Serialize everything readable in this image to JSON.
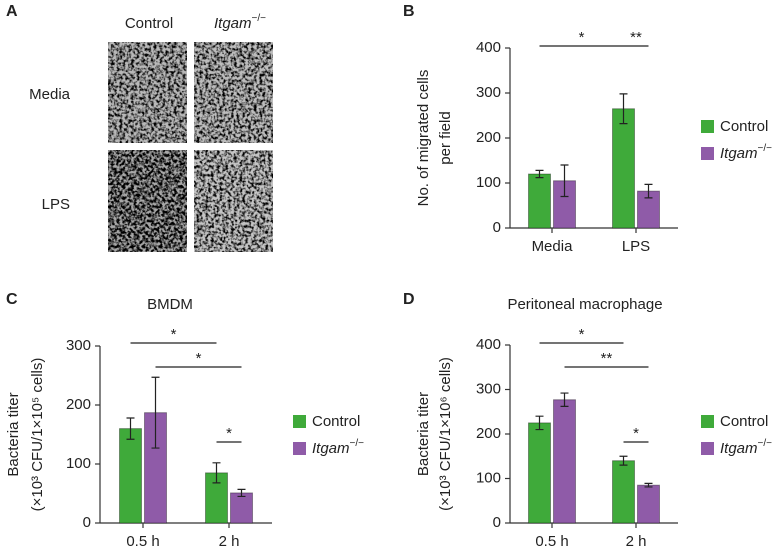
{
  "panel_a": {
    "panel": "A",
    "columns": [
      "Control",
      "Itgam−/−"
    ],
    "rows": [
      "Media",
      "LPS"
    ]
  },
  "chart_data": [
    {
      "type": "bar",
      "panel": "B",
      "ylabel": [
        "No. of migrated cells",
        "per field"
      ],
      "categories": [
        "Media",
        "LPS"
      ],
      "series": [
        {
          "name": "Control",
          "color": "#3faa3a",
          "values": [
            120,
            265
          ],
          "errors": [
            8,
            33
          ]
        },
        {
          "name": "Itgam−/−",
          "color": "#8f5ba8",
          "values": [
            105,
            82
          ],
          "errors": [
            35,
            15
          ]
        }
      ],
      "ylim": [
        0,
        400
      ],
      "yticks": [
        0,
        100,
        200,
        300,
        400
      ],
      "annotations": [
        {
          "text": "*"
        },
        {
          "text": "**"
        }
      ]
    },
    {
      "type": "bar",
      "panel": "C",
      "title": "BMDM",
      "ylabel": [
        "Bacteria titer",
        "(×10³ CFU/1×10⁵ cells)"
      ],
      "categories": [
        "0.5 h",
        "2 h"
      ],
      "series": [
        {
          "name": "Control",
          "color": "#3faa3a",
          "values": [
            160,
            85
          ],
          "errors": [
            18,
            17
          ]
        },
        {
          "name": "Itgam−/−",
          "color": "#8f5ba8",
          "values": [
            187,
            51
          ],
          "errors": [
            60,
            6
          ]
        }
      ],
      "ylim": [
        0,
        300
      ],
      "yticks": [
        0,
        100,
        200,
        300
      ],
      "annotations": [
        {
          "text": "*"
        },
        {
          "text": "*"
        },
        {
          "text": "*"
        }
      ]
    },
    {
      "type": "bar",
      "panel": "D",
      "title": "Peritoneal macrophage",
      "ylabel": [
        "Bacteria titer",
        "(×10³ CFU/1×10⁶ cells)"
      ],
      "categories": [
        "0.5 h",
        "2 h"
      ],
      "series": [
        {
          "name": "Control",
          "color": "#3faa3a",
          "values": [
            225,
            140
          ],
          "errors": [
            15,
            10
          ]
        },
        {
          "name": "Itgam−/−",
          "color": "#8f5ba8",
          "values": [
            277,
            85
          ],
          "errors": [
            15,
            4
          ]
        }
      ],
      "ylim": [
        0,
        400
      ],
      "yticks": [
        0,
        100,
        200,
        300,
        400
      ],
      "annotations": [
        {
          "text": "*"
        },
        {
          "text": "**"
        },
        {
          "text": "*"
        }
      ]
    }
  ]
}
